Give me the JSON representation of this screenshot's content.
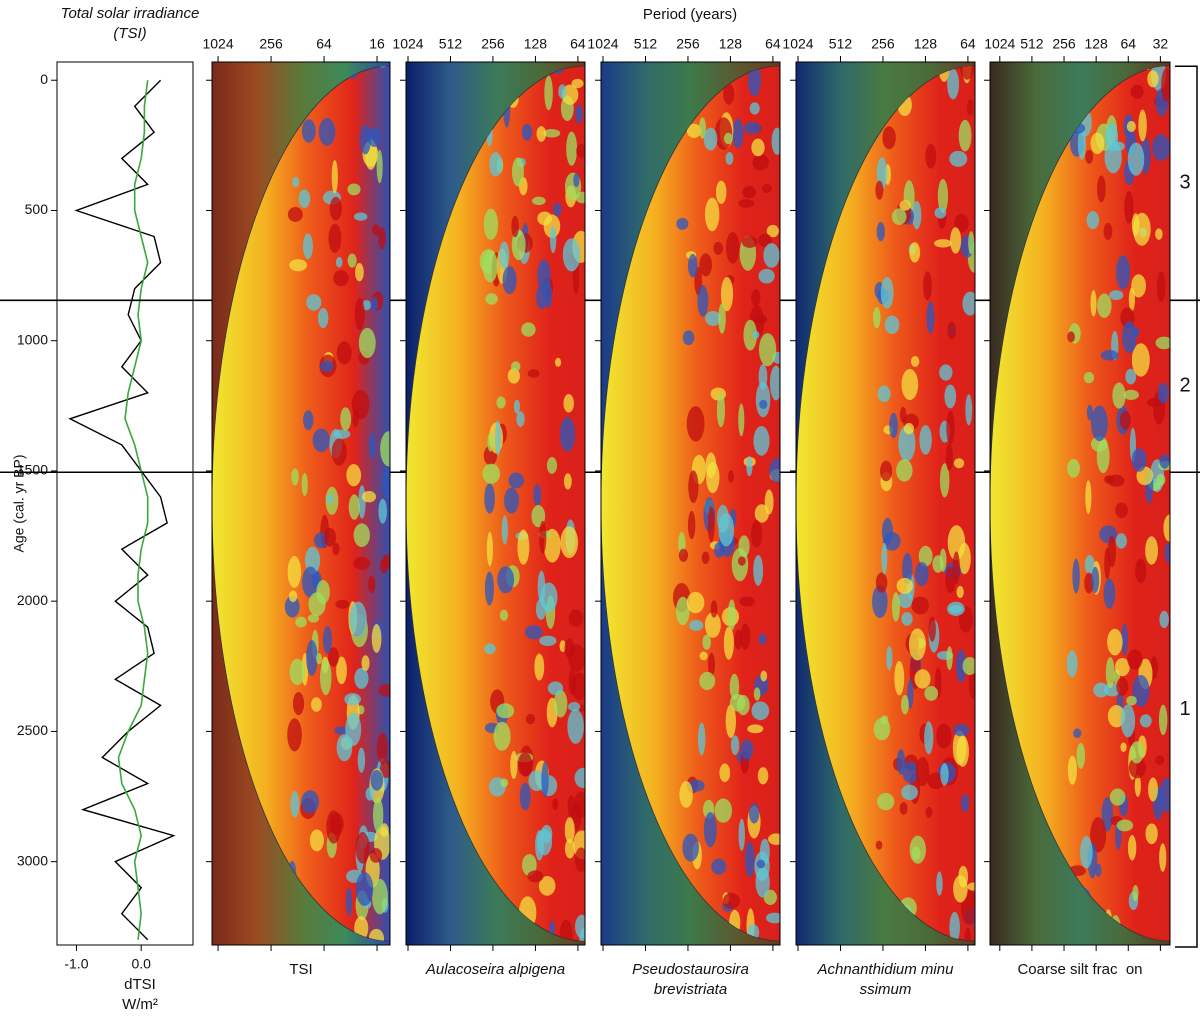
{
  "chart_data": [
    {
      "type": "line",
      "title": "Total solar irradiance (TSI)",
      "x_label": "dTSI",
      "x_unit": "W/m²",
      "y_label": "Age (cal. yr BP)",
      "xlim": [
        -1.3,
        0.8
      ],
      "xticks": [
        {
          "value": -1.0,
          "label": "-1.0"
        },
        {
          "value": 0.0,
          "label": "0.0"
        }
      ],
      "ylim": [
        -70,
        3320
      ],
      "y_inverted": true,
      "yticks": [
        0,
        500,
        1000,
        1500,
        2000,
        2500,
        3000
      ],
      "y": [
        0,
        100,
        200,
        300,
        400,
        500,
        600,
        700,
        800,
        900,
        1000,
        1100,
        1200,
        1300,
        1400,
        1500,
        1600,
        1700,
        1800,
        1900,
        2000,
        2100,
        2200,
        2300,
        2400,
        2500,
        2600,
        2700,
        2800,
        2900,
        3000,
        3100,
        3200,
        3300
      ],
      "series": [
        {
          "color": "#000000",
          "values": [
            0.3,
            -0.1,
            0.2,
            -0.3,
            0.1,
            -1.0,
            0.2,
            0.3,
            -0.1,
            -0.2,
            0.0,
            -0.3,
            0.1,
            -1.1,
            -0.3,
            0.0,
            0.3,
            0.4,
            -0.3,
            0.1,
            -0.4,
            0.1,
            0.2,
            -0.4,
            0.3,
            -0.2,
            -0.6,
            0.1,
            -0.9,
            0.5,
            -0.4,
            0.0,
            -0.3,
            0.1
          ]
        },
        {
          "color": "#3aa83a",
          "values": [
            0.1,
            0.05,
            0.05,
            0.0,
            -0.1,
            -0.1,
            0.0,
            0.1,
            0.0,
            -0.05,
            0.0,
            -0.1,
            -0.2,
            -0.25,
            -0.1,
            0.0,
            0.1,
            0.1,
            0.0,
            -0.05,
            -0.05,
            0.05,
            0.1,
            0.05,
            0.0,
            -0.2,
            -0.35,
            -0.3,
            -0.1,
            0.0,
            -0.1,
            -0.05,
            0.0,
            -0.05
          ]
        }
      ],
      "zones": {
        "boundaries": [
          845,
          1505
        ],
        "labels": [
          "3",
          "2",
          "1"
        ]
      }
    },
    {
      "type": "wavelet",
      "title": "Period (years)",
      "xscale": "log",
      "panels": [
        {
          "label": "TSI",
          "italic": false,
          "xlim": [
            1200,
            11.4
          ],
          "xticks": [
            1024,
            256,
            64,
            16
          ]
        },
        {
          "label": "Aulacoseira alpigena",
          "italic": true,
          "xlim": [
            1058,
            57
          ],
          "xticks": [
            1024,
            512,
            256,
            128,
            64
          ]
        },
        {
          "label": "Pseudostaurosira brevistriata",
          "italic": true,
          "xlim": [
            1058,
            57
          ],
          "xticks": [
            1024,
            512,
            256,
            128,
            64
          ]
        },
        {
          "label": "Achnanthidium minu  ssimum",
          "italic": true,
          "xlim": [
            1058,
            57
          ],
          "xticks": [
            1024,
            512,
            256,
            128,
            64
          ]
        },
        {
          "label": "Coarse silt frac  on",
          "italic": false,
          "xlim": [
            1265,
            26
          ],
          "xticks": [
            1024,
            512,
            256,
            128,
            64,
            32
          ]
        }
      ]
    }
  ]
}
